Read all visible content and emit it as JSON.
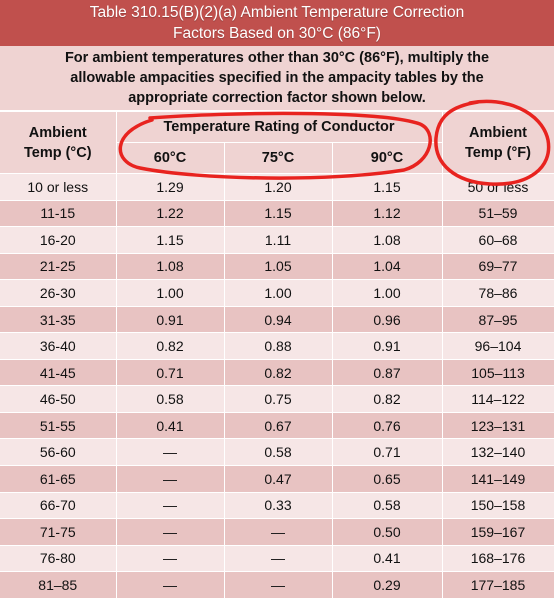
{
  "title": {
    "line1": "Table 310.15(B)(2)(a) Ambient Temperature Correction",
    "line2": "Factors Based on 30°C (86°F)"
  },
  "intro": {
    "line1": "For ambient temperatures other than 30°C (86°F), multiply the",
    "line2": "allowable ampacities specified in the ampacity tables by the",
    "line3": "appropriate correction factor shown below."
  },
  "header": {
    "ambient_c_line1": "Ambient",
    "ambient_c_line2": "Temp (°C)",
    "group": "Temperature Rating of Conductor",
    "col60": "60°C",
    "col75": "75°C",
    "col90": "90°C",
    "ambient_f_line1": "Ambient",
    "ambient_f_line2": "Temp (°F)"
  },
  "rows": [
    [
      "10 or less",
      "1.29",
      "1.20",
      "1.15",
      "50 or less"
    ],
    [
      "11-15",
      "1.22",
      "1.15",
      "1.12",
      "51–59"
    ],
    [
      "16-20",
      "1.15",
      "1.11",
      "1.08",
      "60–68"
    ],
    [
      "21-25",
      "1.08",
      "1.05",
      "1.04",
      "69–77"
    ],
    [
      "26-30",
      "1.00",
      "1.00",
      "1.00",
      "78–86"
    ],
    [
      "31-35",
      "0.91",
      "0.94",
      "0.96",
      "87–95"
    ],
    [
      "36-40",
      "0.82",
      "0.88",
      "0.91",
      "96–104"
    ],
    [
      "41-45",
      "0.71",
      "0.82",
      "0.87",
      "105–113"
    ],
    [
      "46-50",
      "0.58",
      "0.75",
      "0.82",
      "114–122"
    ],
    [
      "51-55",
      "0.41",
      "0.67",
      "0.76",
      "123–131"
    ],
    [
      "56-60",
      "—",
      "0.58",
      "0.71",
      "132–140"
    ],
    [
      "61-65",
      "—",
      "0.47",
      "0.65",
      "141–149"
    ],
    [
      "66-70",
      "—",
      "0.33",
      "0.58",
      "150–158"
    ],
    [
      "71-75",
      "—",
      "—",
      "0.50",
      "159–167"
    ],
    [
      "76-80",
      "—",
      "—",
      "0.41",
      "168–176"
    ],
    [
      "81–85",
      "—",
      "—",
      "0.29",
      "177–185"
    ]
  ],
  "colors": {
    "title_bg": "#c0504d",
    "header_bg": "#efd3d2",
    "row_light": "#f6e6e6",
    "row_dark": "#e8c3c2",
    "annotation": "#e8231f"
  }
}
